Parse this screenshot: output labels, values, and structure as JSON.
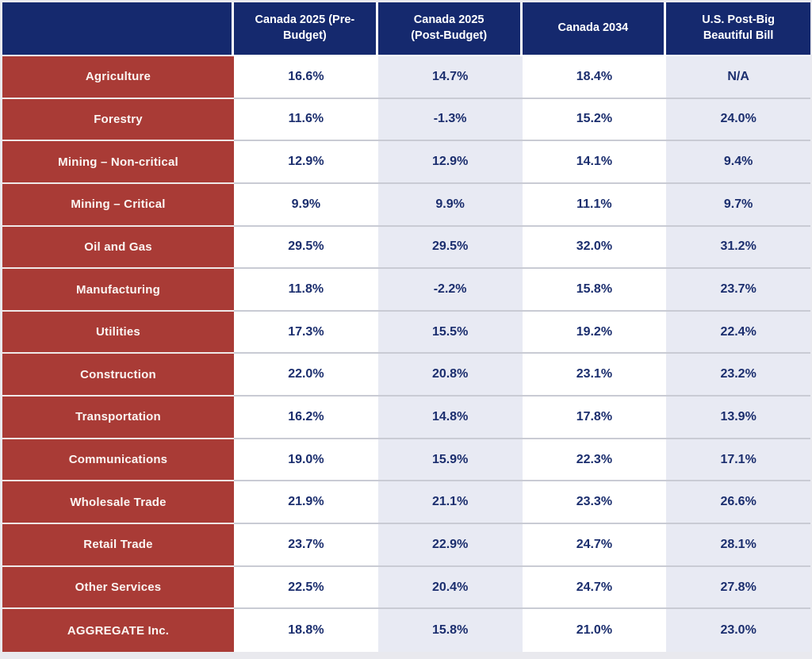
{
  "table": {
    "header": {
      "corner": "",
      "columns": [
        "Canada 2025 (Pre-Budget)",
        "Canada 2025 (Post-Budget)",
        "Canada 2034",
        "U.S. Post-Big Beautiful Bill"
      ]
    },
    "rows": [
      {
        "label": "Agriculture",
        "values": [
          "16.6%",
          "14.7%",
          "18.4%",
          "N/A"
        ]
      },
      {
        "label": "Forestry",
        "values": [
          "11.6%",
          "-1.3%",
          "15.2%",
          "24.0%"
        ]
      },
      {
        "label": "Mining – Non-critical",
        "values": [
          "12.9%",
          "12.9%",
          "14.1%",
          "9.4%"
        ]
      },
      {
        "label": "Mining – Critical",
        "values": [
          "9.9%",
          "9.9%",
          "11.1%",
          "9.7%"
        ]
      },
      {
        "label": "Oil and Gas",
        "values": [
          "29.5%",
          "29.5%",
          "32.0%",
          "31.2%"
        ]
      },
      {
        "label": "Manufacturing",
        "values": [
          "11.8%",
          "-2.2%",
          "15.8%",
          "23.7%"
        ]
      },
      {
        "label": "Utilities",
        "values": [
          "17.3%",
          "15.5%",
          "19.2%",
          "22.4%"
        ]
      },
      {
        "label": "Construction",
        "values": [
          "22.0%",
          "20.8%",
          "23.1%",
          "23.2%"
        ]
      },
      {
        "label": "Transportation",
        "values": [
          "16.2%",
          "14.8%",
          "17.8%",
          "13.9%"
        ]
      },
      {
        "label": "Communications",
        "values": [
          "19.0%",
          "15.9%",
          "22.3%",
          "17.1%"
        ]
      },
      {
        "label": "Wholesale Trade",
        "values": [
          "21.9%",
          "21.1%",
          "23.3%",
          "26.6%"
        ]
      },
      {
        "label": "Retail Trade",
        "values": [
          "23.7%",
          "22.9%",
          "24.7%",
          "28.1%"
        ]
      },
      {
        "label": "Other Services",
        "values": [
          "22.5%",
          "20.4%",
          "24.7%",
          "27.8%"
        ]
      },
      {
        "label": "AGGREGATE Inc.",
        "values": [
          "18.8%",
          "15.8%",
          "21.0%",
          "23.0%"
        ]
      }
    ]
  },
  "colors": {
    "header_bg": "#15296e",
    "label_bg": "#a93b36",
    "alt_column_bg": "#e8eaf3",
    "value_text": "#1b2e6e",
    "gridline": "#c9cbd4",
    "page_bg": "#e9e9ee"
  },
  "chart_data": {
    "type": "table",
    "title": "",
    "unit": "%",
    "categories": [
      "Agriculture",
      "Forestry",
      "Mining – Non-critical",
      "Mining – Critical",
      "Oil and Gas",
      "Manufacturing",
      "Utilities",
      "Construction",
      "Transportation",
      "Communications",
      "Wholesale Trade",
      "Retail Trade",
      "Other Services",
      "AGGREGATE Inc."
    ],
    "series": [
      {
        "name": "Canada 2025 (Pre-Budget)",
        "values": [
          16.6,
          11.6,
          12.9,
          9.9,
          29.5,
          11.8,
          17.3,
          22.0,
          16.2,
          19.0,
          21.9,
          23.7,
          22.5,
          18.8
        ]
      },
      {
        "name": "Canada 2025 (Post-Budget)",
        "values": [
          14.7,
          -1.3,
          12.9,
          9.9,
          29.5,
          -2.2,
          15.5,
          20.8,
          14.8,
          15.9,
          21.1,
          22.9,
          20.4,
          15.8
        ]
      },
      {
        "name": "Canada 2034",
        "values": [
          18.4,
          15.2,
          14.1,
          11.1,
          32.0,
          15.8,
          19.2,
          23.1,
          17.8,
          22.3,
          23.3,
          24.7,
          24.7,
          21.0
        ]
      },
      {
        "name": "U.S. Post-Big Beautiful Bill",
        "values": [
          null,
          24.0,
          9.4,
          9.7,
          31.2,
          23.7,
          22.4,
          23.2,
          13.9,
          17.1,
          26.6,
          28.1,
          27.8,
          23.0
        ]
      }
    ]
  }
}
